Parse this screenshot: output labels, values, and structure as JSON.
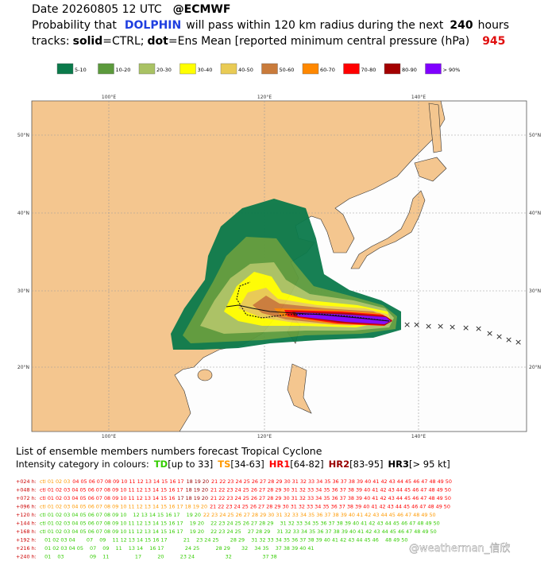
{
  "header": {
    "date": "Date 20260805 12 UTC",
    "source": "@ECMWF",
    "prob_prefix": "Probability that",
    "storm": "DOLPHIN",
    "prob_mid": "will pass within 120 km radius during the next",
    "hours": "240",
    "hours_unit": "hours",
    "tracks": "tracks:",
    "solid": "solid",
    "ctrl": "=CTRL;",
    "dot": "dot",
    "ens": "=Ens Mean [reported minimum central pressure (hPa)",
    "pressure": "945"
  },
  "legend": [
    {
      "label": "5-10",
      "color": "#0b7a4b"
    },
    {
      "label": "10-20",
      "color": "#5c9a3c"
    },
    {
      "label": "20-30",
      "color": "#a9c264"
    },
    {
      "label": "30-40",
      "color": "#ffff00"
    },
    {
      "label": "40-50",
      "color": "#e9cb55"
    },
    {
      "label": "50-60",
      "color": "#c97b3b"
    },
    {
      "label": "60-70",
      "color": "#ff8800"
    },
    {
      "label": "70-80",
      "color": "#ff0000"
    },
    {
      "label": "80-90",
      "color": "#a30000"
    },
    {
      "label": "> 90%",
      "color": "#8000ff"
    }
  ],
  "map": {
    "lon_labels": [
      "100°E",
      "120°E",
      "140°E"
    ],
    "lat_labels": [
      "50°N",
      "40°N",
      "30°N",
      "20°N"
    ]
  },
  "members": {
    "title": "List of ensemble members numbers forecast Tropical Cyclone",
    "intensity_label": "Intensity category in colours:",
    "categories": [
      {
        "code": "TD",
        "range": "[up to 33]",
        "color": "#33cc00"
      },
      {
        "code": "TS",
        "range": "[34-63]",
        "color": "#ff9900"
      },
      {
        "code": "HR1",
        "range": "[64-82]",
        "color": "#ff0000"
      },
      {
        "code": "HR2",
        "range": "[83-95]",
        "color": "#990000"
      },
      {
        "code": "HR3",
        "range": "[> 95 kt]",
        "color": "#000000"
      }
    ],
    "rows": [
      {
        "lead": "+024 h:",
        "groups": [
          {
            "cat": 1,
            "text": "ctl 01 02 03"
          },
          {
            "cat": 2,
            "text": "04 05 06 07 08 09 10 11 12 13 14 15 16 17"
          },
          {
            "cat": 3,
            "text": "18 19 20"
          },
          {
            "cat": 2,
            "text": "21 22 23 24 25 26 27 28 29 30 31 32 33 34 35 36 37 38 39 40 41 42 43 44 45 46 47 48 49 50"
          }
        ]
      },
      {
        "lead": "+048 h:",
        "groups": [
          {
            "cat": 2,
            "text": "ctl 01 02 03 04 05 06 07 08 09 10 11 12 13 14 15 16 17"
          },
          {
            "cat": 3,
            "text": "18 19 20"
          },
          {
            "cat": 2,
            "text": "21 22 23 24 25 26 27 28 29 30 31 32 33 34 35 36 37 38 39 40 41 42 43 44 45 46 47 48 49 50"
          }
        ]
      },
      {
        "lead": "+072 h:",
        "groups": [
          {
            "cat": 2,
            "text": "ctl 01 02 03 04 05 06 07 08 09 10 11 12 13 14 15 16"
          },
          {
            "cat": 3,
            "text": "17 18 19 20"
          },
          {
            "cat": 2,
            "text": "21 22 23 24 25 26 27 28 29 30 31 32 33 34 35 36 37 38 39 40 41 42 43 44 45 46 47 48 49 50"
          }
        ]
      },
      {
        "lead": "+096 h:",
        "groups": [
          {
            "cat": 1,
            "text": "ctl 01 02 03 04 05 06 07 08 09 10 11 12 13 14 15 16 17 18 19 20"
          },
          {
            "cat": 2,
            "text": "21 22 23 24 25 26 27 28 29 30 31 32 33 34 35 36 37 38 39 40 41 42 43 44 45 46 47 48 49 50"
          }
        ]
      },
      {
        "lead": "+120 h:",
        "groups": [
          {
            "cat": 0,
            "text": "ctl 01 02 03 04 05 06 07 08 09 10    12 13 14 15 16 17    19 20"
          },
          {
            "cat": 1,
            "text": "22 23 24 25 26 27 28 29 30 31 32 33 34 35 36 37 38 39 40 41 42 43 44 45 46 47 48 49 50"
          }
        ]
      },
      {
        "lead": "+144 h:",
        "groups": [
          {
            "cat": 0,
            "text": "ctl 01 02 03 04 05 06 07 08 09 10 11 12 13 14 15 16 17    19 20    22 23 24 25 26 27 28 29    31 32 33 34 35 36 37 38 39 40 41 42 43 44 45 46 47 48 49 50"
          }
        ]
      },
      {
        "lead": "+168 h:",
        "groups": [
          {
            "cat": 0,
            "text": "ctl 01 02 03 04 05 06 07 08 09 10 11 12 13 14 15 16 17    19 20    22 23 24 25    27 28 29    31 32 33 34 35 36 37 38 39 40 41 42 43 44 45 46 47 48 49 50"
          }
        ]
      },
      {
        "lead": "+192 h:",
        "groups": [
          {
            "cat": 0,
            "text": "   01 02 03 04       07    09    11 12 13 14 15 16 17          21    23 24 25       28 29    31 32 33 34 35 36 37 38 39 40 41 42 43 44 45 46    48 49 50"
          }
        ]
      },
      {
        "lead": "+216 h:",
        "groups": [
          {
            "cat": 0,
            "text": "   01 02 03 04 05    07    09    11    13 14    16 17             24 25          28 29       32    34 35    37 38 39 40 41"
          }
        ]
      },
      {
        "lead": "+240 h:",
        "groups": [
          {
            "cat": 0,
            "text": "   01    03                09    11                17          20          23 24                   32                   37 38"
          }
        ]
      }
    ]
  },
  "watermark": "@weatherman_信欣"
}
